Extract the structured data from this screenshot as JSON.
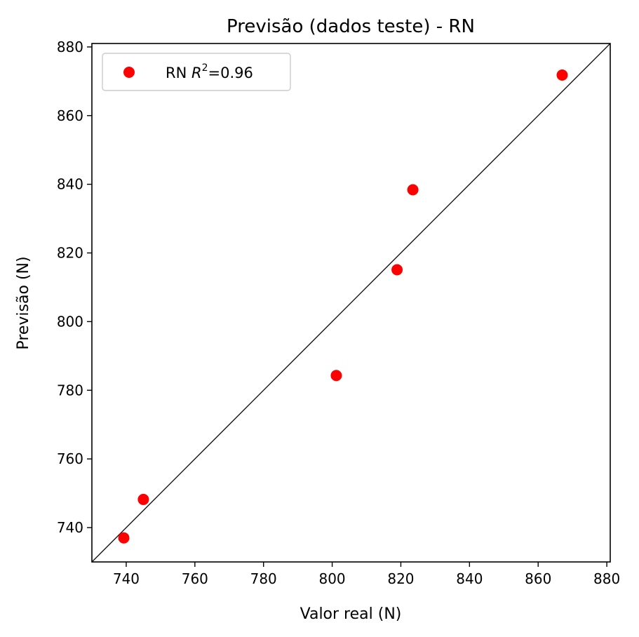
{
  "chart_data": {
    "type": "scatter",
    "title": "Previsão (dados teste) - RN",
    "xlabel": "Valor real (N)",
    "ylabel": "Previsão (N)",
    "xlim": [
      730,
      881
    ],
    "ylim": [
      730,
      881
    ],
    "xticks": [
      740,
      760,
      780,
      800,
      820,
      840,
      860,
      880
    ],
    "yticks": [
      740,
      760,
      780,
      800,
      820,
      840,
      860,
      880
    ],
    "grid": false,
    "legend": {
      "placement": "top-left",
      "prefix": "RN ",
      "r_symbol": "R",
      "exponent": "2",
      "suffix": "=0.96"
    },
    "series": [
      {
        "color": "#ff0000",
        "points": [
          {
            "x": 739.3,
            "y": 737.0
          },
          {
            "x": 745.0,
            "y": 748.2
          },
          {
            "x": 801.2,
            "y": 784.3
          },
          {
            "x": 818.9,
            "y": 815.1
          },
          {
            "x": 823.5,
            "y": 838.4
          },
          {
            "x": 867.0,
            "y": 871.8
          }
        ]
      }
    ],
    "reference_line": {
      "from": [
        730,
        730
      ],
      "to": [
        881,
        881
      ],
      "color": "#000000"
    }
  }
}
